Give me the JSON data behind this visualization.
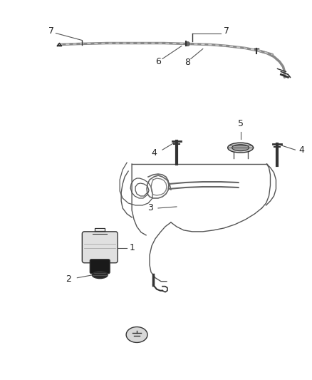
{
  "bg_color": "#ffffff",
  "line_color": "#555555",
  "dark_line": "#333333",
  "label_color": "#222222",
  "fig_width": 4.38,
  "fig_height": 5.33,
  "dpi": 100
}
